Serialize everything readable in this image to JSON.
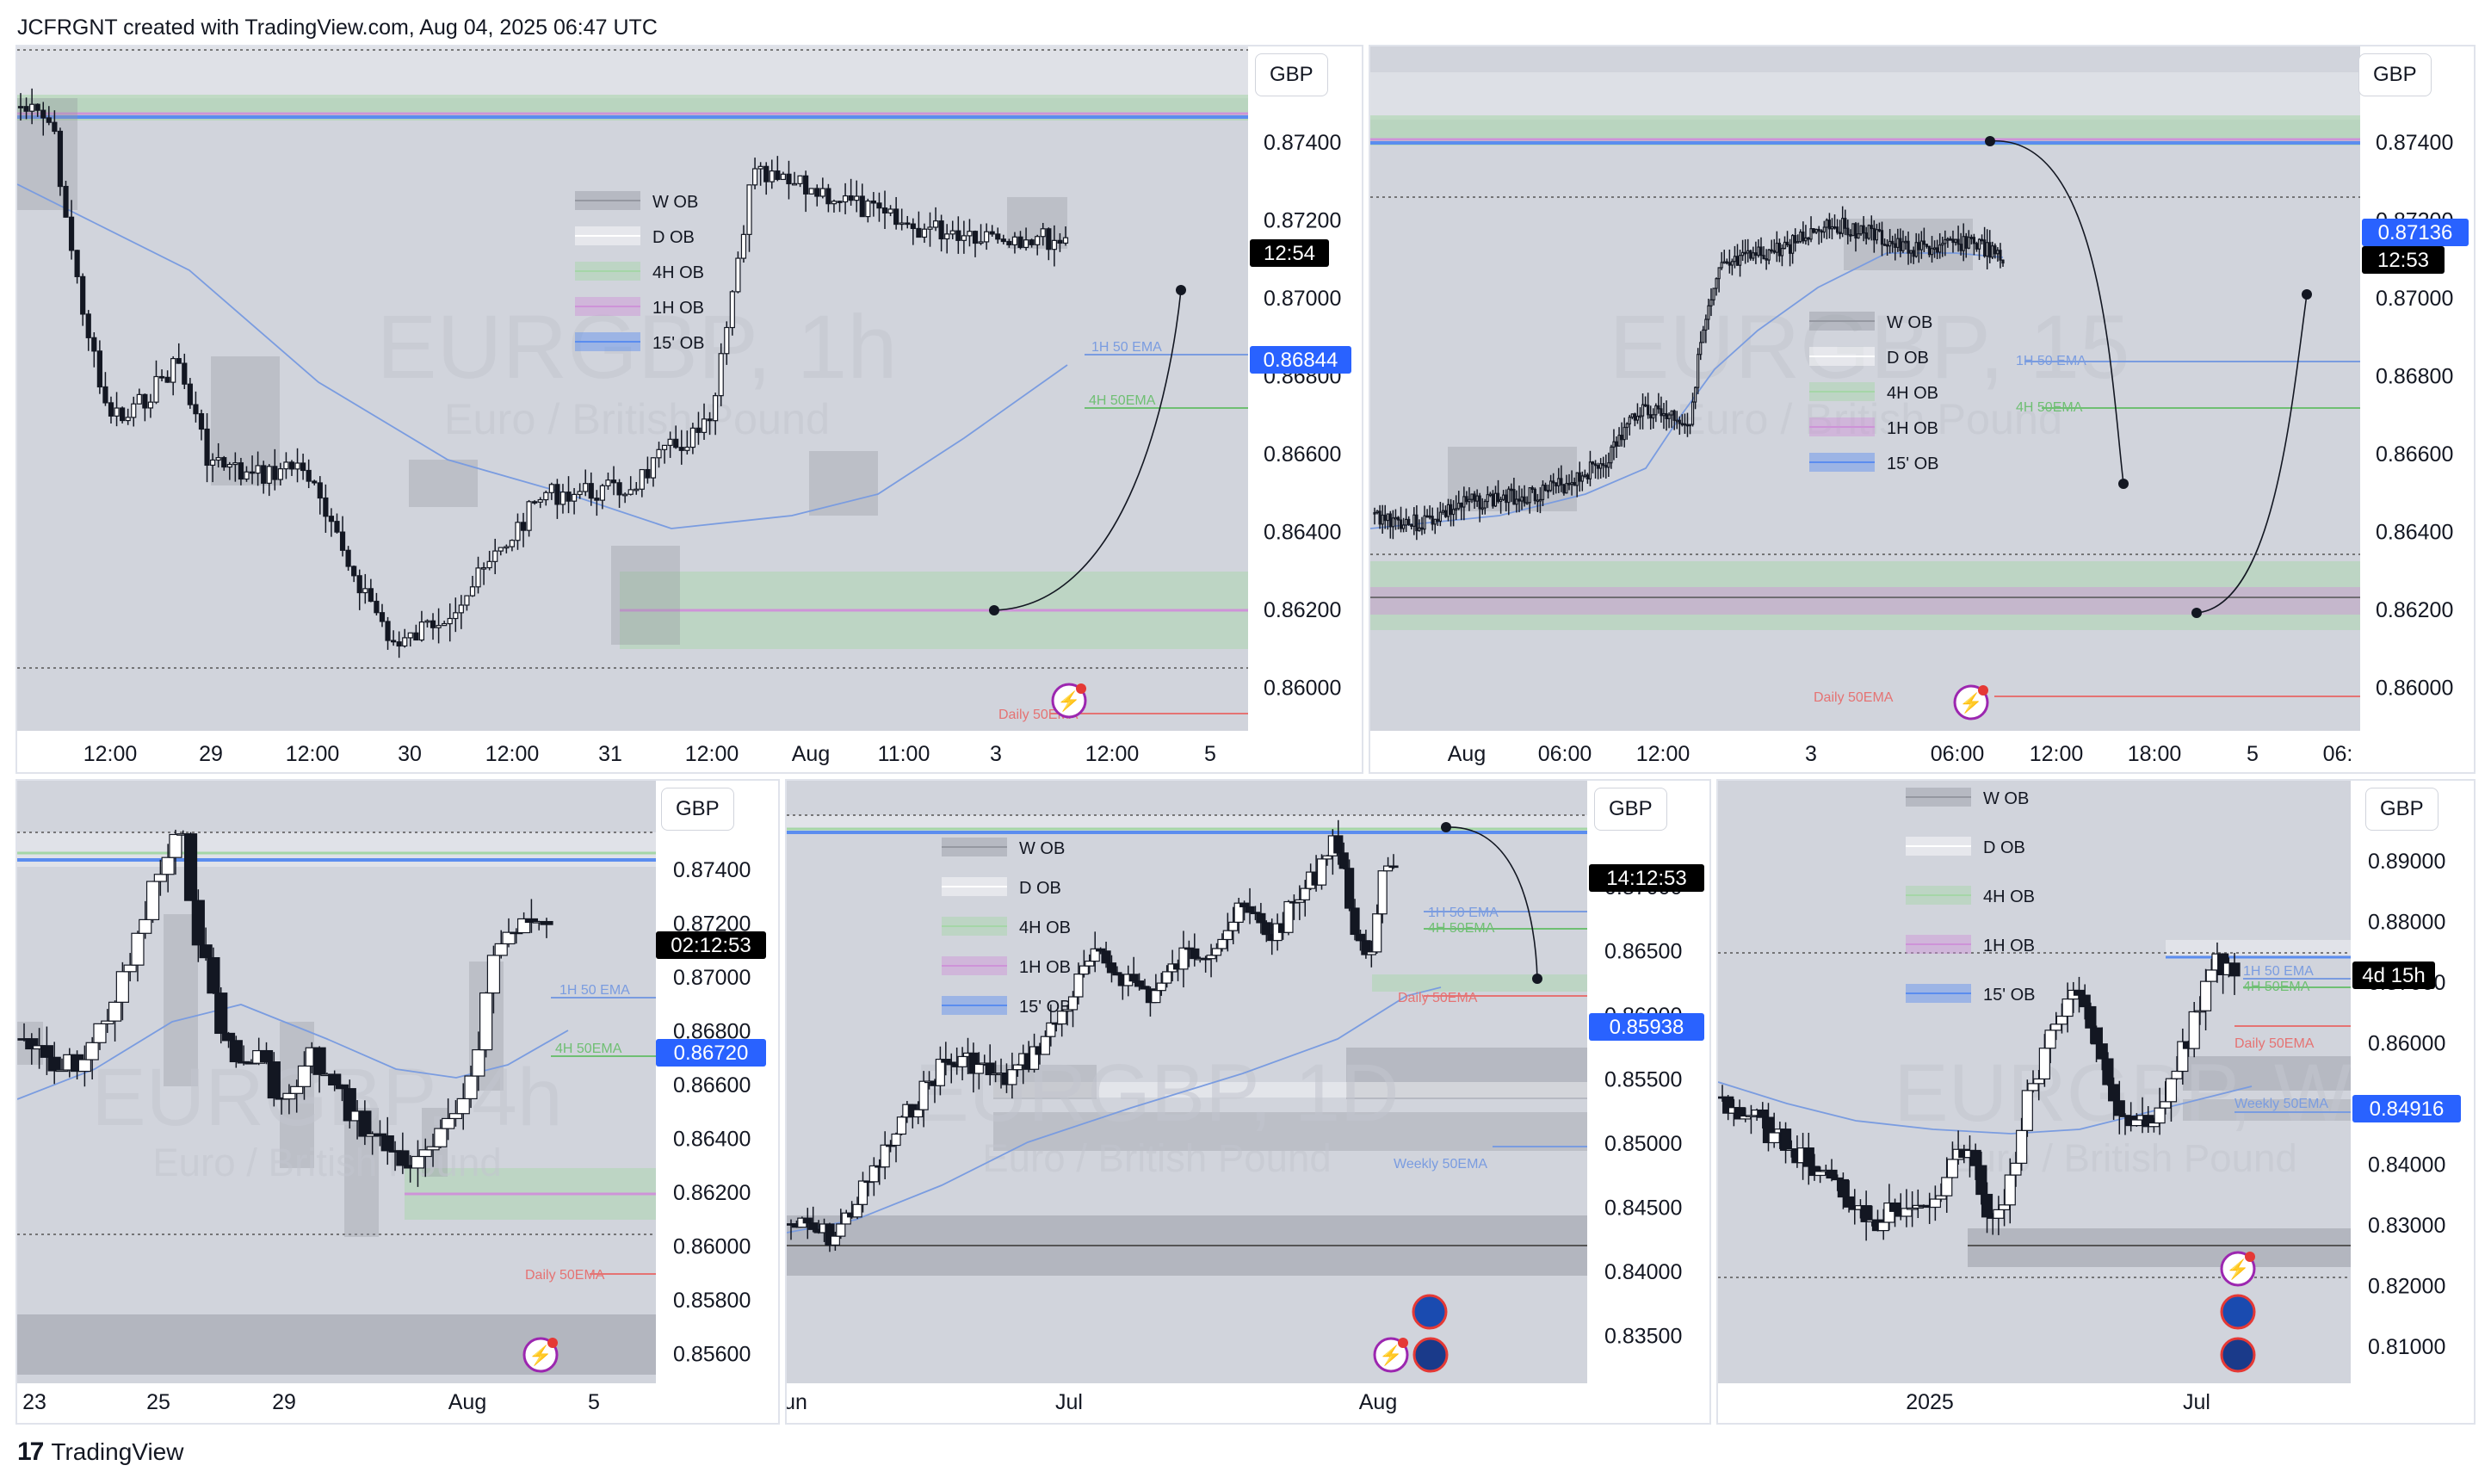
{
  "header": {
    "text": "JCFRGNT created with TradingView.com, Aug 04, 2025 06:47 UTC"
  },
  "footer": {
    "brand": "TradingView"
  },
  "colors": {
    "bg": "#d1d4dc",
    "candle": "#131722",
    "w_ob": "#9598a1",
    "d_ob": "#ffffff",
    "h4_ob": "#a5d6a7",
    "h1_ob": "#ce93d8",
    "m15_ob": "#5b8def",
    "ema_blue": "#7a9ce0",
    "ema_green": "#6fbf73",
    "ema_red": "#e57373",
    "price_badge": "#2962ff",
    "timer": "#000000"
  },
  "panels": [
    {
      "id": "p1",
      "currency": "GBP",
      "watermark_symbol": "EURGBP, 1h",
      "watermark_name": "Euro / British Pound",
      "price_labels": [
        "0.87400",
        "0.87200",
        "0.87000",
        "0.86800",
        "0.86600",
        "0.86400",
        "0.86200",
        "0.86000"
      ],
      "time_labels": [
        "12:00",
        "29",
        "12:00",
        "30",
        "12:00",
        "31",
        "12:00",
        "Aug",
        "11:00",
        "3",
        "12:00",
        "5"
      ],
      "current_price": "0.86844",
      "countdown": "12:54",
      "legend": [
        "W OB",
        "D OB",
        "4H OB",
        "1H OB",
        "15' OB"
      ],
      "ema_labels": [
        "1H 50 EMA",
        "4H 50EMA",
        "Daily 50EMA"
      ]
    },
    {
      "id": "p2",
      "currency": "GBP",
      "watermark_symbol": "EURGBP, 15",
      "watermark_name": "Euro / British Pound",
      "price_labels": [
        "0.87400",
        "0.87200",
        "0.87000",
        "0.86800",
        "0.86600",
        "0.86400",
        "0.86200",
        "0.86000"
      ],
      "time_labels": [
        "Aug",
        "06:00",
        "12:00",
        "3",
        "06:00",
        "12:00",
        "18:00",
        "5",
        "06:"
      ],
      "current_price": "0.87136",
      "countdown": "12:53",
      "legend": [
        "W OB",
        "D OB",
        "4H OB",
        "1H OB",
        "15' OB"
      ],
      "ema_labels": [
        "1H 50 EMA",
        "4H 50EMA",
        "Daily 50EMA"
      ]
    },
    {
      "id": "p3",
      "currency": "GBP",
      "watermark_symbol": "EURGBP, 4h",
      "watermark_name": "Euro / British Pound",
      "price_labels": [
        "0.87400",
        "0.87200",
        "0.87000",
        "0.86800",
        "0.86600",
        "0.86400",
        "0.86200",
        "0.86000",
        "0.85800",
        "0.85600"
      ],
      "time_labels": [
        "23",
        "25",
        "29",
        "Aug",
        "5"
      ],
      "current_price": "0.86720",
      "countdown": "02:12:53",
      "ema_labels": [
        "1H 50 EMA",
        "4H 50EMA",
        "Daily 50EMA"
      ]
    },
    {
      "id": "p4",
      "currency": "GBP",
      "watermark_symbol": "EURGBP, 1D",
      "watermark_name": "Euro / British Pound",
      "price_labels": [
        "0.87000",
        "0.86500",
        "0.86000",
        "0.85500",
        "0.85000",
        "0.84500",
        "0.84000",
        "0.83500"
      ],
      "time_labels": [
        "un",
        "Jul",
        "Aug"
      ],
      "current_price": "0.85938",
      "countdown": "14:12:53",
      "legend": [
        "W OB",
        "D OB",
        "4H OB",
        "1H OB",
        "15' OB"
      ],
      "ema_labels": [
        "1H 50 EMA",
        "4H 50EMA",
        "Daily 50EMA",
        "Weekly 50EMA"
      ]
    },
    {
      "id": "p5",
      "currency": "GBP",
      "watermark_symbol": "EURGBP, W",
      "watermark_name": "Euro / British Pound",
      "price_labels": [
        "0.89000",
        "0.88000",
        "0.87000",
        "0.86000",
        "0.85000",
        "0.84000",
        "0.83000",
        "0.82000",
        "0.81000"
      ],
      "time_labels": [
        "2025",
        "Jul"
      ],
      "current_price": "0.84916",
      "countdown": "4d 15h",
      "legend": [
        "W OB",
        "D OB",
        "4H OB",
        "1H OB",
        "15' OB"
      ],
      "ema_labels": [
        "1H 50 EMA",
        "4H 50EMA",
        "Daily 50EMA",
        "Weekly 50EMA"
      ]
    }
  ]
}
